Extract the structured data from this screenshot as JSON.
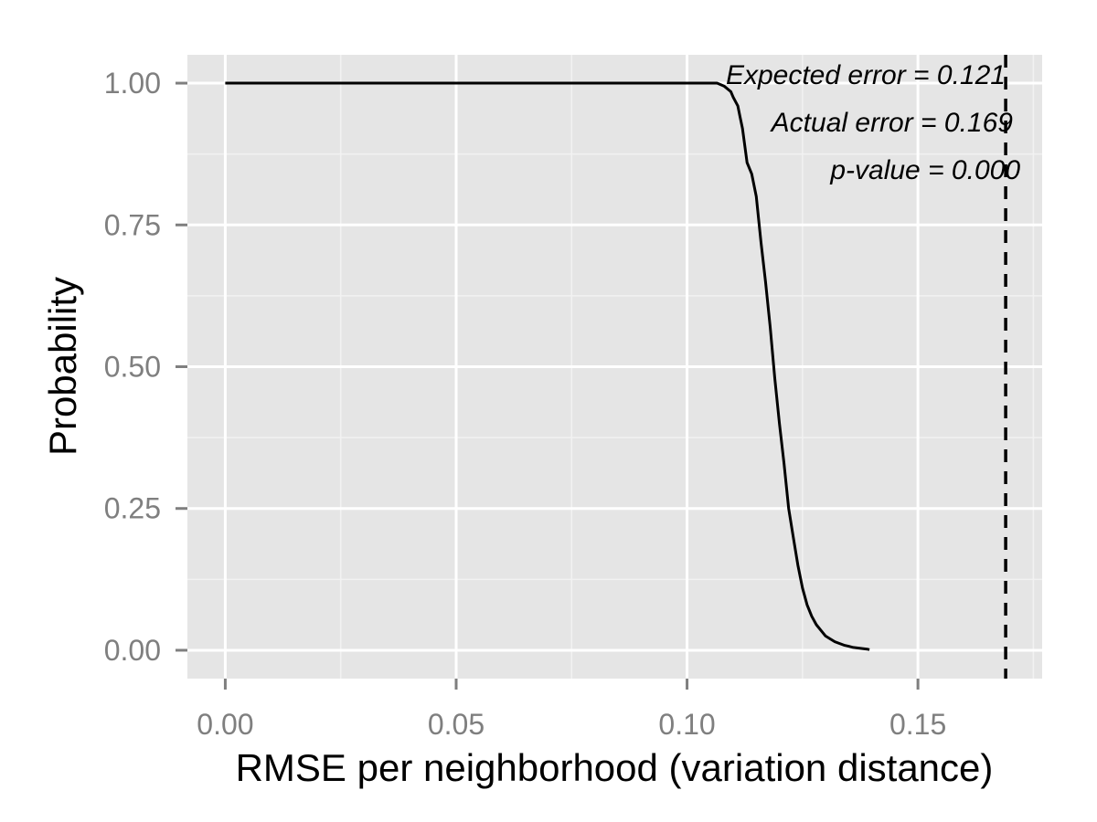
{
  "chart_data": {
    "type": "line",
    "title": "",
    "xlabel": "RMSE per neighborhood (variation distance)",
    "ylabel": "Probability",
    "xlim": [
      -0.0082,
      0.1769
    ],
    "ylim": [
      -0.05,
      1.05
    ],
    "x_ticks": [
      0.0,
      0.05,
      0.1,
      0.15
    ],
    "x_tick_labels": [
      "0.00",
      "0.05",
      "0.10",
      "0.15"
    ],
    "y_ticks": [
      0.0,
      0.25,
      0.5,
      0.75,
      1.0
    ],
    "y_tick_labels": [
      "0.00",
      "0.25",
      "0.50",
      "0.75",
      "1.00"
    ],
    "grid": true,
    "legend": "none",
    "series": [
      {
        "color": "#000000",
        "x": [
          0.0,
          0.095,
          0.1065,
          0.108,
          0.1095,
          0.11,
          0.111,
          0.1115,
          0.112,
          0.1125,
          0.113,
          0.114,
          0.115,
          0.116,
          0.117,
          0.118,
          0.119,
          0.12,
          0.121,
          0.122,
          0.123,
          0.124,
          0.125,
          0.126,
          0.127,
          0.128,
          0.129,
          0.13,
          0.131,
          0.132,
          0.133,
          0.134,
          0.135,
          0.136,
          0.137,
          0.138,
          0.139,
          0.1395
        ],
        "y": [
          1.0,
          1.0,
          1.0,
          0.995,
          0.985,
          0.975,
          0.96,
          0.94,
          0.92,
          0.89,
          0.86,
          0.84,
          0.8,
          0.72,
          0.65,
          0.57,
          0.48,
          0.4,
          0.33,
          0.25,
          0.2,
          0.15,
          0.11,
          0.08,
          0.06,
          0.045,
          0.035,
          0.025,
          0.02,
          0.015,
          0.012,
          0.009,
          0.007,
          0.005,
          0.004,
          0.003,
          0.002,
          0.001
        ]
      }
    ],
    "vline": {
      "x": 0.169,
      "style": "dashed",
      "color": "#000000"
    },
    "annotations": [
      "Expected error = 0.121",
      "Actual error = 0.169",
      "p-value = 0.000"
    ],
    "colors": {
      "panel_background": "#e5e5e5",
      "major_grid": "#ffffff",
      "minor_grid": "#f2f2f2",
      "tick_text": "#7f7f7f",
      "line": "#000000"
    }
  }
}
